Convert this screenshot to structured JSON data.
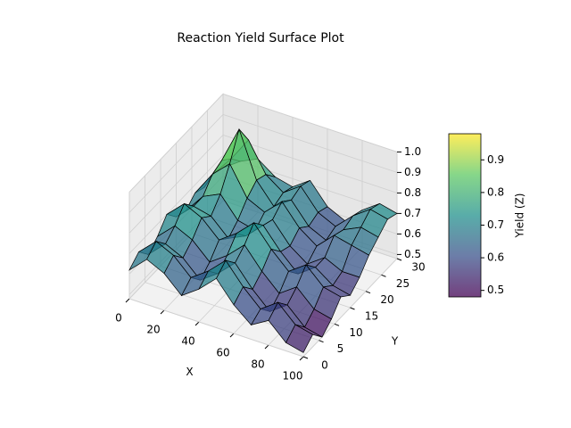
{
  "chart_data": {
    "type": "surface",
    "title": "Reaction Yield Surface Plot",
    "x_label": "X",
    "y_label": "Y",
    "colorbar_label": "Yield (Z)",
    "x": [
      0,
      10,
      20,
      30,
      40,
      50,
      60,
      70,
      80,
      90,
      100
    ],
    "y": [
      0,
      3,
      6,
      9,
      12,
      15,
      18,
      21,
      24,
      27,
      30
    ],
    "z": [
      [
        0.62,
        0.7,
        0.66,
        0.58,
        0.64,
        0.72,
        0.62,
        0.55,
        0.6,
        0.52,
        0.5
      ],
      [
        0.66,
        0.74,
        0.7,
        0.62,
        0.68,
        0.76,
        0.66,
        0.58,
        0.64,
        0.56,
        0.54
      ],
      [
        0.6,
        0.68,
        0.64,
        0.56,
        0.62,
        0.7,
        0.6,
        0.52,
        0.58,
        0.5,
        0.48
      ],
      [
        0.64,
        0.72,
        0.68,
        0.6,
        0.66,
        0.74,
        0.64,
        0.56,
        0.62,
        0.54,
        0.52
      ],
      [
        0.7,
        0.78,
        0.74,
        0.66,
        0.72,
        0.8,
        0.7,
        0.62,
        0.68,
        0.6,
        0.58
      ],
      [
        0.64,
        0.72,
        0.7,
        0.62,
        0.66,
        0.74,
        0.64,
        0.56,
        0.62,
        0.56,
        0.54
      ],
      [
        0.62,
        0.72,
        0.76,
        0.66,
        0.64,
        0.72,
        0.62,
        0.56,
        0.62,
        0.58,
        0.58
      ],
      [
        0.66,
        0.78,
        0.86,
        0.72,
        0.68,
        0.76,
        0.66,
        0.6,
        0.68,
        0.66,
        0.64
      ],
      [
        0.64,
        0.8,
        0.98,
        0.76,
        0.66,
        0.72,
        0.62,
        0.58,
        0.66,
        0.7,
        0.68
      ],
      [
        0.66,
        0.76,
        0.88,
        0.74,
        0.68,
        0.74,
        0.64,
        0.6,
        0.68,
        0.74,
        0.72
      ],
      [
        0.64,
        0.7,
        0.74,
        0.68,
        0.66,
        0.72,
        0.62,
        0.58,
        0.66,
        0.72,
        0.7
      ]
    ],
    "xlim": [
      0,
      100
    ],
    "ylim": [
      0,
      30
    ],
    "zlim": [
      0.48,
      1.0
    ],
    "xticks": [
      0,
      20,
      40,
      60,
      80,
      100
    ],
    "yticks": [
      0,
      5,
      10,
      15,
      20,
      25,
      30
    ],
    "zticks": [
      0.5,
      0.6,
      0.7,
      0.8,
      0.9,
      {
        "value": 1.0,
        "label": "1.0"
      }
    ],
    "colormap": "viridis",
    "grid": true,
    "colorbar": {
      "clim": [
        0.48,
        0.98
      ],
      "ticks": [
        0.5,
        0.6,
        0.7,
        0.8,
        0.9
      ]
    }
  }
}
